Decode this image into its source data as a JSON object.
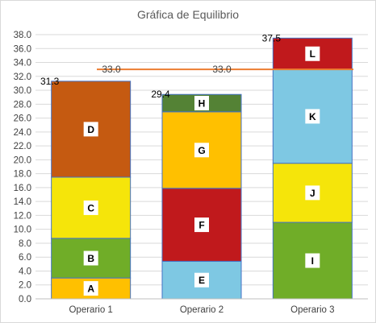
{
  "chart_data": {
    "type": "bar",
    "stacked": true,
    "title": "Gráfica de Equilibrio",
    "xlabel": "",
    "ylabel": "",
    "ylim": [
      0,
      38
    ],
    "ytick_step": 2,
    "ytick_labels": [
      "0.0",
      "2.0",
      "4.0",
      "6.0",
      "8.0",
      "10.0",
      "12.0",
      "14.0",
      "16.0",
      "18.0",
      "20.0",
      "22.0",
      "24.0",
      "26.0",
      "28.0",
      "30.0",
      "32.0",
      "34.0",
      "36.0",
      "38.0"
    ],
    "grid": true,
    "categories": [
      "Operario 1",
      "Operario 2",
      "Operario 3"
    ],
    "stacks": [
      {
        "category": "Operario 1",
        "total": 31.3,
        "total_label": "31.3",
        "segments": [
          {
            "label": "A",
            "value": 3.0,
            "color": "#ffc000"
          },
          {
            "label": "B",
            "value": 5.7,
            "color": "#70ad28"
          },
          {
            "label": "C",
            "value": 8.8,
            "color": "#f5e50a"
          },
          {
            "label": "D",
            "value": 13.8,
            "color": "#c55a11"
          }
        ]
      },
      {
        "category": "Operario 2",
        "total": 29.4,
        "total_label": "29.4",
        "segments": [
          {
            "label": "E",
            "value": 5.4,
            "color": "#7ec8e3"
          },
          {
            "label": "F",
            "value": 10.5,
            "color": "#c0191c"
          },
          {
            "label": "G",
            "value": 11.0,
            "color": "#ffc000"
          },
          {
            "label": "H",
            "value": 2.5,
            "color": "#548235"
          }
        ]
      },
      {
        "category": "Operario 3",
        "total": 37.5,
        "total_label": "37.5",
        "segments": [
          {
            "label": "I",
            "value": 11.0,
            "color": "#70ad28"
          },
          {
            "label": "J",
            "value": 8.5,
            "color": "#f5e50a"
          },
          {
            "label": "K",
            "value": 13.5,
            "color": "#7ec8e3"
          },
          {
            "label": "L",
            "value": 4.5,
            "color": "#c0191c"
          }
        ]
      }
    ],
    "reference_line": {
      "value": 33.0,
      "labels": [
        "33.0",
        "33.0"
      ],
      "color": "#ed7d31"
    },
    "colors": {
      "grid": "#d9d9d9",
      "axis": "#bfbfbf",
      "bar_border": "#4472c4"
    }
  }
}
